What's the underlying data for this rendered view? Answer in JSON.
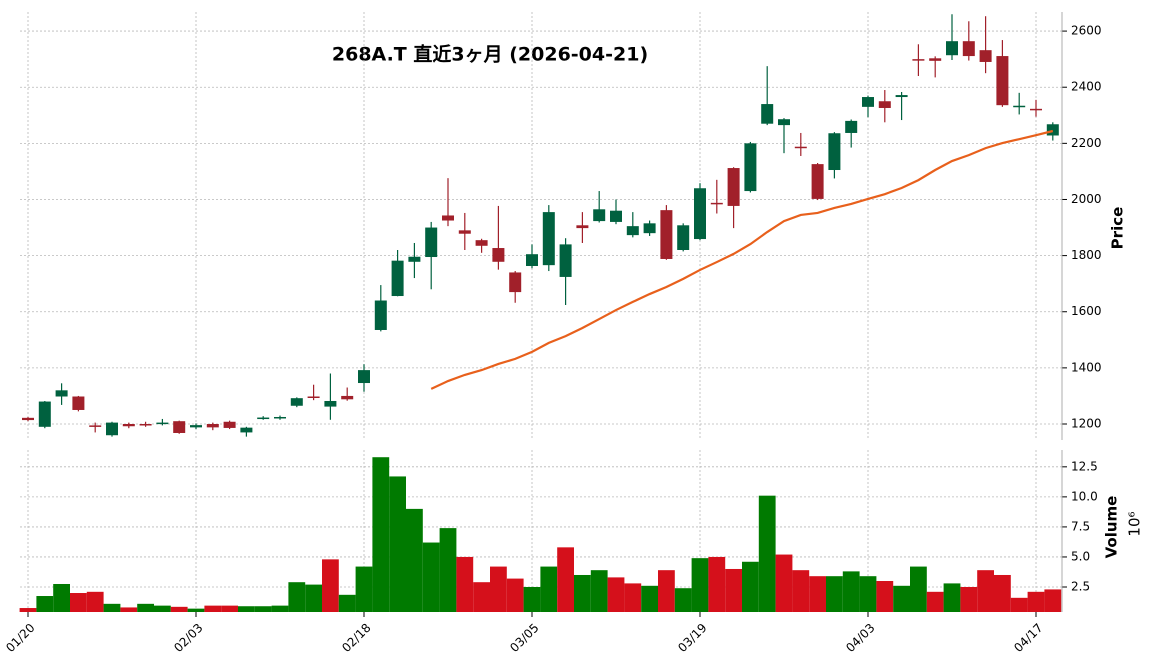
{
  "chart_data": [
    {
      "type": "candlestick",
      "title": "268A.T 直近3ヶ月 (2026-04-21)",
      "y_label": "Price",
      "categories": [
        "01/20",
        null,
        null,
        null,
        null,
        null,
        null,
        null,
        null,
        null,
        "02/03",
        null,
        null,
        null,
        null,
        null,
        null,
        null,
        null,
        null,
        "02/18",
        null,
        null,
        null,
        null,
        null,
        null,
        null,
        null,
        null,
        "03/05",
        null,
        null,
        null,
        null,
        null,
        null,
        null,
        null,
        null,
        "03/19",
        null,
        null,
        null,
        null,
        null,
        null,
        null,
        null,
        null,
        "04/03",
        null,
        null,
        null,
        null,
        null,
        null,
        null,
        null,
        null,
        "04/17",
        null
      ],
      "open": [
        1222,
        1190,
        1298,
        1298,
        1195,
        1160,
        1200,
        1200,
        1200,
        1210,
        1188,
        1200,
        1208,
        1170,
        1220,
        1220,
        1265,
        1298,
        1262,
        1300,
        1346,
        1535,
        1656,
        1778,
        1795,
        1943,
        1890,
        1855,
        1827,
        1740,
        1763,
        1766,
        1724,
        1908,
        1923,
        1920,
        1873,
        1880,
        1962,
        1820,
        1859,
        1988,
        2112,
        2030,
        2270,
        2265,
        2188,
        2126,
        2105,
        2237,
        2330,
        2350,
        2365,
        2500,
        2503,
        2514,
        2564,
        2532,
        2511,
        2330,
        2323,
        2228
      ],
      "high": [
        1225,
        1282,
        1345,
        1300,
        1205,
        1208,
        1205,
        1208,
        1218,
        1212,
        1202,
        1205,
        1212,
        1190,
        1228,
        1230,
        1295,
        1340,
        1380,
        1330,
        1413,
        1695,
        1820,
        1845,
        1920,
        2076,
        1952,
        1860,
        1977,
        1745,
        1840,
        1980,
        1862,
        1955,
        2030,
        2000,
        1955,
        1925,
        1980,
        1915,
        2058,
        2070,
        2115,
        2205,
        2475,
        2290,
        2237,
        2130,
        2240,
        2285,
        2370,
        2390,
        2383,
        2553,
        2510,
        2660,
        2635,
        2653,
        2568,
        2380,
        2355,
        2275
      ],
      "low": [
        1210,
        1185,
        1268,
        1245,
        1170,
        1155,
        1185,
        1190,
        1195,
        1165,
        1182,
        1178,
        1182,
        1155,
        1215,
        1215,
        1260,
        1285,
        1215,
        1283,
        1315,
        1530,
        1655,
        1720,
        1680,
        1905,
        1820,
        1810,
        1750,
        1632,
        1755,
        1745,
        1624,
        1845,
        1918,
        1912,
        1865,
        1870,
        1785,
        1815,
        1855,
        1950,
        1898,
        2025,
        2265,
        2165,
        2155,
        1998,
        2075,
        2185,
        2293,
        2275,
        2283,
        2440,
        2435,
        2497,
        2495,
        2450,
        2330,
        2303,
        2295,
        2210
      ],
      "close": [
        1214,
        1280,
        1320,
        1250,
        1190,
        1205,
        1192,
        1196,
        1205,
        1168,
        1196,
        1188,
        1186,
        1187,
        1223,
        1225,
        1292,
        1295,
        1282,
        1288,
        1392,
        1640,
        1782,
        1796,
        1900,
        1925,
        1878,
        1835,
        1778,
        1670,
        1805,
        1955,
        1840,
        1898,
        1965,
        1960,
        1905,
        1915,
        1788,
        1908,
        2040,
        1983,
        1977,
        2200,
        2340,
        2286,
        2183,
        2002,
        2236,
        2280,
        2365,
        2326,
        2372,
        2495,
        2494,
        2564,
        2511,
        2490,
        2336,
        2334,
        2318,
        2268
      ],
      "ma": [
        null,
        null,
        null,
        null,
        null,
        null,
        null,
        null,
        null,
        null,
        null,
        null,
        null,
        null,
        null,
        null,
        null,
        null,
        null,
        null,
        null,
        null,
        null,
        null,
        1325,
        1353,
        1375,
        1392,
        1414,
        1432,
        1457,
        1489,
        1513,
        1542,
        1574,
        1606,
        1635,
        1663,
        1688,
        1717,
        1749,
        1777,
        1806,
        1841,
        1884,
        1923,
        1945,
        1952,
        1970,
        1984,
        2002,
        2019,
        2041,
        2069,
        2105,
        2137,
        2158,
        2183,
        2201,
        2215,
        2229,
        2244
      ],
      "up_color": "#00613f",
      "down_color": "#a1202a",
      "ma_color": "#e8601c",
      "ylim": [
        1143,
        2668
      ],
      "yticks": [
        1200,
        1400,
        1600,
        1800,
        2000,
        2200,
        2400,
        2600
      ],
      "grid": true
    },
    {
      "type": "volume",
      "y_label": "Volume",
      "y_multiplier": "10⁶",
      "values": [
        0.75,
        1.75,
        2.75,
        2.0,
        2.1,
        1.1,
        0.8,
        1.1,
        0.95,
        0.85,
        0.7,
        0.95,
        0.95,
        0.9,
        0.9,
        0.95,
        2.9,
        2.7,
        4.8,
        1.85,
        4.2,
        13.3,
        11.7,
        9.0,
        6.2,
        7.4,
        5.0,
        2.9,
        4.2,
        3.2,
        2.5,
        4.2,
        5.8,
        3.5,
        3.9,
        3.3,
        2.8,
        2.6,
        3.9,
        2.4,
        4.9,
        5.0,
        4.0,
        4.6,
        10.1,
        5.2,
        3.9,
        3.4,
        3.4,
        3.8,
        3.4,
        3.0,
        2.6,
        4.2,
        2.1,
        2.8,
        2.5,
        3.9,
        3.5,
        1.6,
        2.1,
        2.3
      ],
      "up_color": "#007a00",
      "down_color": "#d5101b",
      "ylim": [
        0.42,
        13.9
      ],
      "yticks": [
        2.5,
        {
          "value": 5,
          "label": "5.0"
        },
        7.5,
        {
          "value": 10,
          "label": "10.0"
        },
        12.5
      ],
      "grid": true
    }
  ]
}
